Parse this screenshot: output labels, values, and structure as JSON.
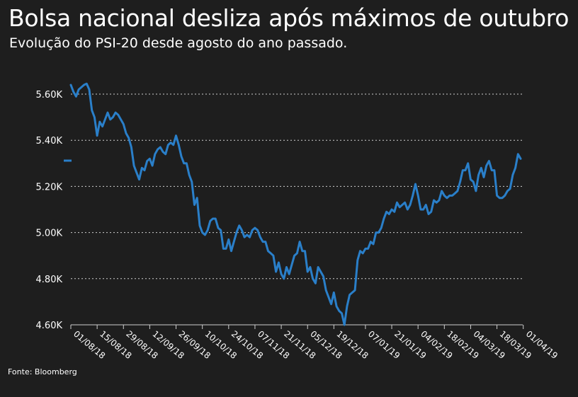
{
  "title": "Bolsa nacional desliza após máximos de outubro",
  "subtitle": "Evolução do PSI-20 desde agosto do ano passado.",
  "source": "Fonte: Bloomberg",
  "colors": {
    "background": "#1e1e1e",
    "line": "#2a7fc9",
    "grid": "#cfcfcf",
    "text": "#ffffff"
  },
  "chart_data": {
    "type": "line",
    "title": "Bolsa nacional desliza após máximos de outubro",
    "subtitle": "Evolução do PSI-20 desde agosto do ano passado.",
    "xlabel": "",
    "ylabel": "",
    "ylim": [
      4600,
      5650
    ],
    "yticks": [
      4600,
      4800,
      5000,
      5200,
      5400,
      5600
    ],
    "ytick_labels": [
      "4.60K",
      "4.80K",
      "5.00K",
      "5.20K",
      "5.40K",
      "5.60K"
    ],
    "xtick_labels": [
      "01/08/18",
      "15/08/18",
      "29/08/18",
      "12/09/18",
      "26/09/18",
      "10/10/18",
      "24/10/18",
      "07/11/18",
      "21/11/18",
      "05/12/18",
      "19/12/18",
      "07/01/19",
      "21/01/19",
      "04/02/19",
      "18/02/19",
      "04/03/19",
      "18/03/19",
      "01/04/19"
    ],
    "xtick_index": [
      0,
      10,
      20,
      30,
      40,
      50,
      60,
      70,
      80,
      90,
      100,
      112,
      122,
      132,
      142,
      152,
      162,
      172
    ],
    "grid": "horizontal dotted",
    "legend": "none",
    "series": [
      {
        "values": [
          5640,
          5610,
          5590,
          5620,
          5630,
          5640,
          5645,
          5620,
          5530,
          5500,
          5420,
          5480,
          5460,
          5490,
          5520,
          5490,
          5500,
          5520,
          5510,
          5490,
          5470,
          5430,
          5410,
          5370,
          5290,
          5260,
          5230,
          5280,
          5270,
          5310,
          5320,
          5290,
          5340,
          5360,
          5370,
          5350,
          5340,
          5380,
          5390,
          5380,
          5420,
          5380,
          5330,
          5300,
          5300,
          5250,
          5220,
          5120,
          5150,
          5030,
          5000,
          4990,
          5010,
          5050,
          5060,
          5060,
          5020,
          5010,
          4930,
          4930,
          4970,
          4920,
          4960,
          5000,
          5030,
          5010,
          4980,
          4990,
          4980,
          5010,
          5020,
          5010,
          4980,
          4960,
          4960,
          4920,
          4910,
          4900,
          4830,
          4870,
          4820,
          4800,
          4850,
          4820,
          4860,
          4900,
          4910,
          4960,
          4920,
          4920,
          4830,
          4850,
          4800,
          4780,
          4850,
          4830,
          4810,
          4750,
          4720,
          4690,
          4740,
          4680,
          4660,
          4650,
          4600,
          4680,
          4730,
          4740,
          4750,
          4880,
          4920,
          4910,
          4930,
          4930,
          4960,
          4950,
          5000,
          5000,
          5020,
          5060,
          5090,
          5080,
          5100,
          5090,
          5130,
          5110,
          5120,
          5130,
          5100,
          5120,
          5160,
          5210,
          5160,
          5100,
          5100,
          5120,
          5080,
          5090,
          5140,
          5130,
          5140,
          5180,
          5160,
          5150,
          5160,
          5160,
          5170,
          5180,
          5220,
          5270,
          5270,
          5300,
          5230,
          5220,
          5180,
          5250,
          5280,
          5240,
          5290,
          5310,
          5270,
          5270,
          5160,
          5150,
          5150,
          5160,
          5180,
          5190,
          5250,
          5280,
          5340,
          5320
        ]
      }
    ]
  }
}
